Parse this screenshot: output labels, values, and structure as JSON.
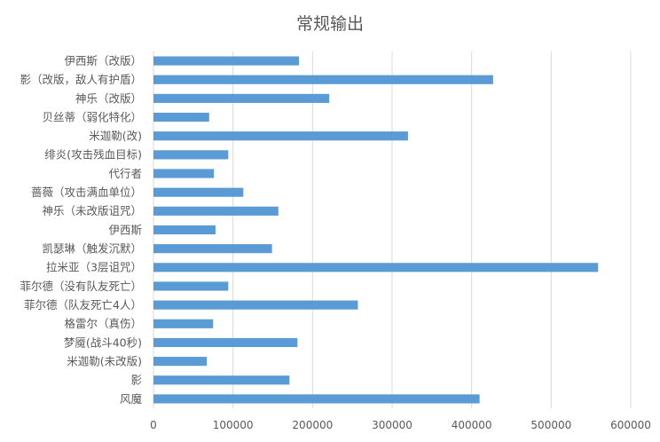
{
  "chart_data": {
    "type": "bar",
    "orientation": "horizontal",
    "title": "常规输出",
    "xlabel": "",
    "ylabel": "",
    "xlim": [
      0,
      600000
    ],
    "xticks": [
      0,
      100000,
      200000,
      300000,
      400000,
      500000,
      600000
    ],
    "xtick_labels": [
      "0",
      "100000",
      "200000",
      "300000",
      "400000",
      "500000",
      "600000"
    ],
    "grid": true,
    "legend": "none",
    "bar_color": "#5b9bd5",
    "categories": [
      "伊西斯（改版）",
      "影（改版，敌人有护盾）",
      "神乐（改版）",
      "贝丝蒂（弱化特化）",
      "米迦勒(改)",
      "绯炎(攻击残血目标)",
      "代行者",
      "蔷薇（攻击满血单位）",
      "神乐（未改版诅咒）",
      "伊西斯",
      "凯瑟琳（触发沉默）",
      "拉米亚（3层诅咒）",
      "菲尔德（没有队友死亡）",
      "菲尔德（队友死亡4人）",
      "格雷尔（真伤）",
      "梦魇(战斗40秒)",
      "米迦勒(未改版)",
      "影",
      "风魔"
    ],
    "values": [
      183000,
      427000,
      221000,
      70000,
      320000,
      94000,
      76000,
      113000,
      157000,
      78000,
      149000,
      559000,
      94000,
      257000,
      75000,
      181000,
      67000,
      171000,
      410000
    ]
  }
}
